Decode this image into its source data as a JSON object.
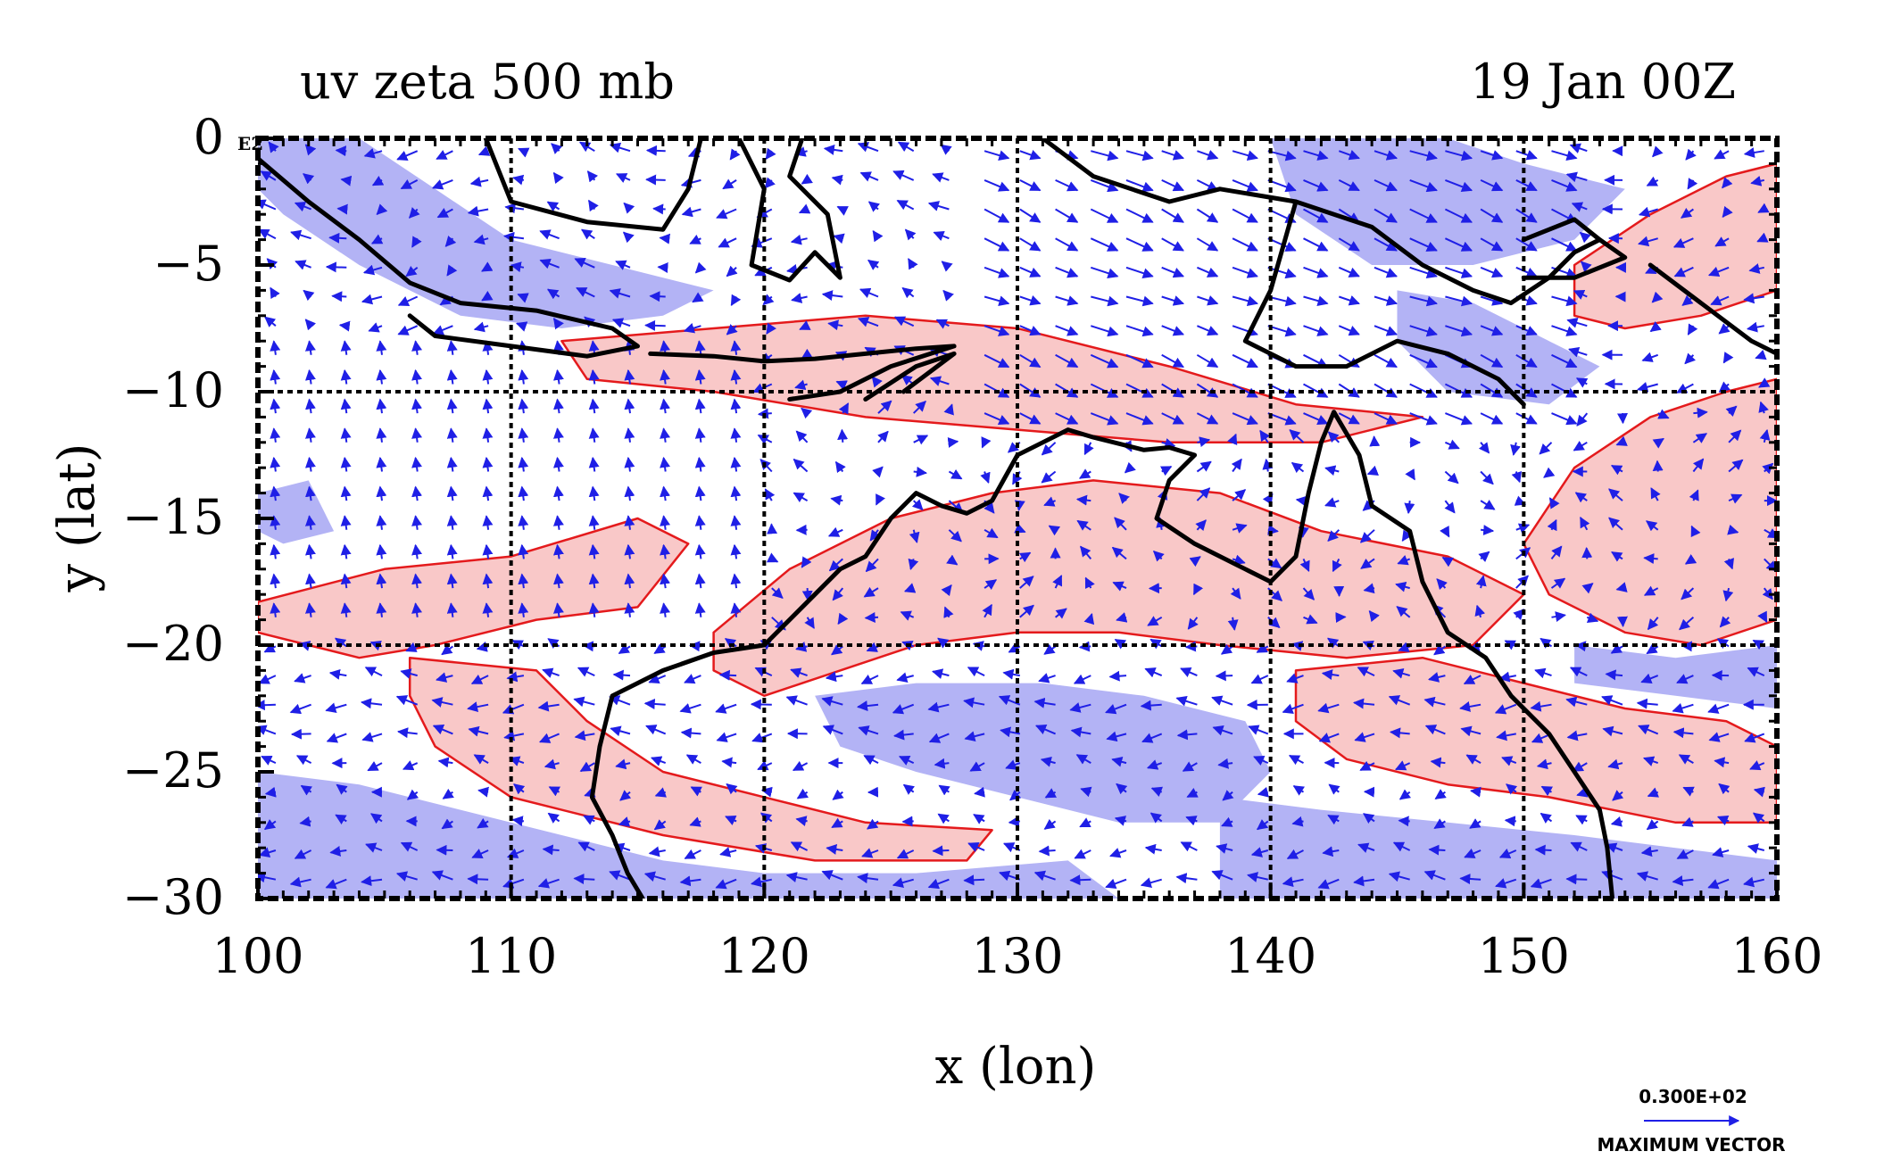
{
  "title_left": "uv zeta 500 mb",
  "title_right": "19 Jan 00Z",
  "corner_label": "E2",
  "xlabel": "x (lon)",
  "ylabel": "y (lat)",
  "max_vector_value": "0.300E+02",
  "max_vector_caption": "MAXIMUM VECTOR",
  "colors": {
    "positive_fill": "#f9c8c8",
    "positive_line": "#e41a1c",
    "negative_fill": "#b3b3f5",
    "vector": "#1f1fe6",
    "coast": "#000000"
  },
  "chart_data": {
    "type": "map",
    "x_range": [
      100,
      160
    ],
    "y_range": [
      -30,
      0
    ],
    "x_ticks": [
      100,
      110,
      120,
      130,
      140,
      150,
      160
    ],
    "y_ticks": [
      0,
      -5,
      -10,
      -15,
      -20,
      -25,
      -30
    ],
    "x_tick_labels": [
      "100",
      "110",
      "120",
      "130",
      "140",
      "150",
      "160"
    ],
    "y_tick_labels": [
      "0",
      "−5",
      "−10",
      "−15",
      "−20",
      "−25",
      "−30"
    ],
    "grid_lon": [
      110,
      120,
      130,
      140,
      150
    ],
    "grid_lat": [
      -10,
      -20
    ],
    "positive_regions": [
      [
        [
          100,
          -18.3
        ],
        [
          105,
          -17
        ],
        [
          110,
          -16.5
        ],
        [
          115,
          -15
        ],
        [
          117,
          -16
        ],
        [
          115,
          -18.5
        ],
        [
          111,
          -19
        ],
        [
          107,
          -20
        ],
        [
          104,
          -20.5
        ],
        [
          100,
          -19.5
        ]
      ],
      [
        [
          106,
          -20.5
        ],
        [
          111,
          -21
        ],
        [
          113,
          -23
        ],
        [
          116,
          -25
        ],
        [
          120,
          -26
        ],
        [
          124,
          -27
        ],
        [
          129,
          -27.3
        ],
        [
          128,
          -28.5
        ],
        [
          122,
          -28.5
        ],
        [
          116,
          -27.5
        ],
        [
          110,
          -26
        ],
        [
          107,
          -24
        ],
        [
          106,
          -22
        ]
      ],
      [
        [
          118,
          -19.5
        ],
        [
          121,
          -17
        ],
        [
          125,
          -15
        ],
        [
          129,
          -14
        ],
        [
          133,
          -13.5
        ],
        [
          138,
          -14
        ],
        [
          142,
          -15.5
        ],
        [
          147,
          -16.5
        ],
        [
          150,
          -18
        ],
        [
          148,
          -20
        ],
        [
          143,
          -20.5
        ],
        [
          138,
          -20
        ],
        [
          134,
          -19.5
        ],
        [
          130,
          -19.5
        ],
        [
          126,
          -20
        ],
        [
          123,
          -21
        ],
        [
          120,
          -22
        ],
        [
          118,
          -21
        ]
      ],
      [
        [
          112,
          -8
        ],
        [
          118,
          -7.5
        ],
        [
          124,
          -7
        ],
        [
          130,
          -7.5
        ],
        [
          136,
          -9
        ],
        [
          141,
          -10.5
        ],
        [
          146,
          -11
        ],
        [
          142,
          -12
        ],
        [
          136,
          -12
        ],
        [
          130,
          -11.5
        ],
        [
          124,
          -11
        ],
        [
          118,
          -10
        ],
        [
          113,
          -9.5
        ]
      ],
      [
        [
          152,
          -13
        ],
        [
          155,
          -11
        ],
        [
          158,
          -10
        ],
        [
          160,
          -9.5
        ],
        [
          160,
          -19
        ],
        [
          157,
          -20
        ],
        [
          154,
          -19.5
        ],
        [
          151,
          -18
        ],
        [
          150,
          -16
        ]
      ],
      [
        [
          141,
          -21
        ],
        [
          146,
          -20.5
        ],
        [
          150,
          -21.5
        ],
        [
          154,
          -22.5
        ],
        [
          158,
          -23
        ],
        [
          160,
          -24
        ],
        [
          160,
          -27
        ],
        [
          156,
          -27
        ],
        [
          151,
          -26
        ],
        [
          147,
          -25.5
        ],
        [
          143,
          -24.5
        ],
        [
          141,
          -23
        ]
      ],
      [
        [
          152,
          -5
        ],
        [
          155,
          -3
        ],
        [
          158,
          -1.5
        ],
        [
          160,
          -1
        ],
        [
          160,
          -6
        ],
        [
          157,
          -7
        ],
        [
          154,
          -7.5
        ],
        [
          152,
          -7
        ]
      ]
    ],
    "negative_regions": [
      [
        [
          100,
          0
        ],
        [
          104,
          0
        ],
        [
          107,
          -2
        ],
        [
          110,
          -4
        ],
        [
          114,
          -5
        ],
        [
          118,
          -6
        ],
        [
          116,
          -7
        ],
        [
          112,
          -7.5
        ],
        [
          108,
          -7
        ],
        [
          104,
          -5
        ],
        [
          101,
          -3
        ],
        [
          100,
          -2
        ]
      ],
      [
        [
          140,
          0
        ],
        [
          147,
          0
        ],
        [
          150,
          -1
        ],
        [
          154,
          -2
        ],
        [
          152,
          -4
        ],
        [
          148,
          -5
        ],
        [
          144,
          -5
        ],
        [
          141,
          -3
        ]
      ],
      [
        [
          145,
          -6
        ],
        [
          148,
          -6.5
        ],
        [
          151,
          -8
        ],
        [
          153,
          -9
        ],
        [
          151,
          -10.5
        ],
        [
          147,
          -10
        ],
        [
          145,
          -8
        ]
      ],
      [
        [
          100,
          -25
        ],
        [
          104,
          -25.5
        ],
        [
          108,
          -26.5
        ],
        [
          112,
          -27.5
        ],
        [
          116,
          -28.5
        ],
        [
          120,
          -29
        ],
        [
          126,
          -29
        ],
        [
          132,
          -28.5
        ],
        [
          134,
          -30
        ],
        [
          100,
          -30
        ]
      ],
      [
        [
          122,
          -22
        ],
        [
          126,
          -21.5
        ],
        [
          131,
          -21.5
        ],
        [
          135,
          -22
        ],
        [
          139,
          -23
        ],
        [
          140,
          -25
        ],
        [
          138,
          -27
        ],
        [
          134,
          -27
        ],
        [
          130,
          -26
        ],
        [
          126,
          -25
        ],
        [
          123,
          -24
        ]
      ],
      [
        [
          138,
          -26
        ],
        [
          142,
          -26.5
        ],
        [
          147,
          -27
        ],
        [
          152,
          -27.5
        ],
        [
          156,
          -28
        ],
        [
          160,
          -28.5
        ],
        [
          160,
          -30
        ],
        [
          138,
          -30
        ]
      ],
      [
        [
          100,
          -14
        ],
        [
          102,
          -13.5
        ],
        [
          103,
          -15.5
        ],
        [
          101,
          -16
        ],
        [
          100,
          -15.5
        ]
      ],
      [
        [
          152,
          -20
        ],
        [
          156,
          -20.5
        ],
        [
          160,
          -20
        ],
        [
          160,
          -22.5
        ],
        [
          156,
          -22
        ],
        [
          152,
          -21.5
        ]
      ]
    ],
    "coastlines": [
      [
        [
          100,
          -0.8
        ],
        [
          102,
          -2.5
        ],
        [
          104,
          -4
        ],
        [
          106,
          -5.7
        ],
        [
          108,
          -6.5
        ],
        [
          111,
          -6.8
        ],
        [
          114,
          -7.5
        ],
        [
          115,
          -8.2
        ],
        [
          113,
          -8.6
        ],
        [
          110,
          -8.2
        ],
        [
          107,
          -7.8
        ],
        [
          106,
          -7
        ]
      ],
      [
        [
          109,
          0
        ],
        [
          110,
          -2.5
        ],
        [
          113,
          -3.3
        ],
        [
          116,
          -3.6
        ],
        [
          117,
          -2
        ],
        [
          117.5,
          0
        ]
      ],
      [
        [
          119,
          0
        ],
        [
          120,
          -2
        ],
        [
          119.5,
          -5
        ],
        [
          121,
          -5.6
        ],
        [
          122,
          -4.5
        ],
        [
          123,
          -5.5
        ],
        [
          122.5,
          -3
        ],
        [
          121,
          -1.5
        ],
        [
          121.5,
          0
        ]
      ],
      [
        [
          115.5,
          -8.5
        ],
        [
          118,
          -8.6
        ],
        [
          120,
          -8.8
        ],
        [
          122,
          -8.7
        ],
        [
          124,
          -8.5
        ],
        [
          126,
          -8.3
        ],
        [
          127.5,
          -8.2
        ],
        [
          125,
          -9
        ],
        [
          123,
          -10
        ],
        [
          121,
          -10.3
        ]
      ],
      [
        [
          124,
          -10.3
        ],
        [
          126,
          -9
        ],
        [
          127.5,
          -8.5
        ],
        [
          125.5,
          -10
        ]
      ],
      [
        [
          131,
          0
        ],
        [
          133,
          -1.5
        ],
        [
          136,
          -2.5
        ],
        [
          138,
          -2
        ],
        [
          141,
          -2.5
        ],
        [
          144,
          -3.5
        ],
        [
          146,
          -5
        ],
        [
          148,
          -6
        ],
        [
          149.5,
          -6.5
        ],
        [
          151,
          -5.5
        ],
        [
          152,
          -4.5
        ],
        [
          153,
          -4
        ]
      ],
      [
        [
          141,
          -2.5
        ],
        [
          140,
          -6
        ],
        [
          139,
          -8
        ],
        [
          141,
          -9
        ],
        [
          143,
          -9
        ],
        [
          145,
          -8
        ],
        [
          147,
          -8.5
        ],
        [
          149,
          -9.5
        ],
        [
          150,
          -10.5
        ]
      ],
      [
        [
          150,
          -4
        ],
        [
          152,
          -3.2
        ],
        [
          153,
          -4
        ],
        [
          154,
          -4.7
        ],
        [
          152,
          -5.5
        ],
        [
          150,
          -5.5
        ]
      ],
      [
        [
          155,
          -5
        ],
        [
          157,
          -6.5
        ],
        [
          159,
          -8
        ],
        [
          160,
          -8.5
        ]
      ],
      [
        [
          120,
          -20
        ],
        [
          122,
          -18
        ],
        [
          123,
          -17
        ],
        [
          124,
          -16.5
        ],
        [
          125,
          -15
        ],
        [
          126,
          -14
        ],
        [
          127,
          -14.5
        ],
        [
          128,
          -14.8
        ],
        [
          129,
          -14.3
        ],
        [
          130,
          -12.5
        ],
        [
          131,
          -12
        ],
        [
          132,
          -11.5
        ],
        [
          133,
          -11.8
        ],
        [
          135,
          -12.3
        ],
        [
          136,
          -12.2
        ],
        [
          137,
          -12.5
        ],
        [
          136,
          -13.5
        ],
        [
          135.5,
          -15
        ],
        [
          137,
          -16
        ],
        [
          139,
          -17
        ],
        [
          140,
          -17.5
        ],
        [
          141,
          -16.5
        ],
        [
          141.5,
          -14
        ],
        [
          142,
          -12
        ],
        [
          142.5,
          -10.8
        ],
        [
          143.5,
          -12.5
        ],
        [
          144,
          -14.5
        ],
        [
          145.5,
          -15.5
        ],
        [
          146,
          -17.5
        ],
        [
          147,
          -19.5
        ],
        [
          148.5,
          -20.5
        ],
        [
          149.5,
          -22
        ],
        [
          151,
          -23.5
        ],
        [
          152,
          -25
        ],
        [
          153,
          -26.5
        ],
        [
          153.3,
          -28
        ],
        [
          153.5,
          -30
        ]
      ],
      [
        [
          120,
          -20
        ],
        [
          118,
          -20.3
        ],
        [
          116,
          -21
        ],
        [
          114,
          -22
        ],
        [
          113.5,
          -24
        ],
        [
          113.2,
          -26
        ],
        [
          114,
          -27.5
        ],
        [
          114.6,
          -29
        ],
        [
          115.2,
          -30
        ]
      ]
    ],
    "max_vector": 30
  }
}
